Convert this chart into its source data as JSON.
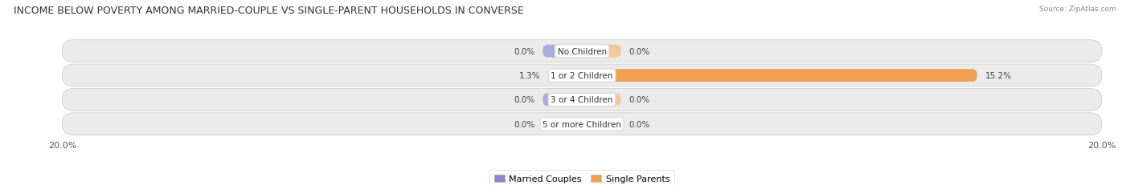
{
  "title": "INCOME BELOW POVERTY AMONG MARRIED-COUPLE VS SINGLE-PARENT HOUSEHOLDS IN CONVERSE",
  "source": "Source: ZipAtlas.com",
  "categories": [
    "No Children",
    "1 or 2 Children",
    "3 or 4 Children",
    "5 or more Children"
  ],
  "married_values": [
    0.0,
    1.3,
    0.0,
    0.0
  ],
  "single_values": [
    0.0,
    15.2,
    0.0,
    0.0
  ],
  "x_max": 20.0,
  "x_min": -20.0,
  "married_color": "#8888cc",
  "married_color_light": "#aaaadd",
  "single_color": "#f0a050",
  "single_color_light": "#f5c89a",
  "row_bg_color": "#ebebeb",
  "row_edge_color": "#d0d0d0",
  "stub_size": 1.5,
  "label_fontsize": 7.5,
  "category_fontsize": 7.5,
  "title_fontsize": 9,
  "axis_label_fontsize": 8,
  "legend_fontsize": 8
}
